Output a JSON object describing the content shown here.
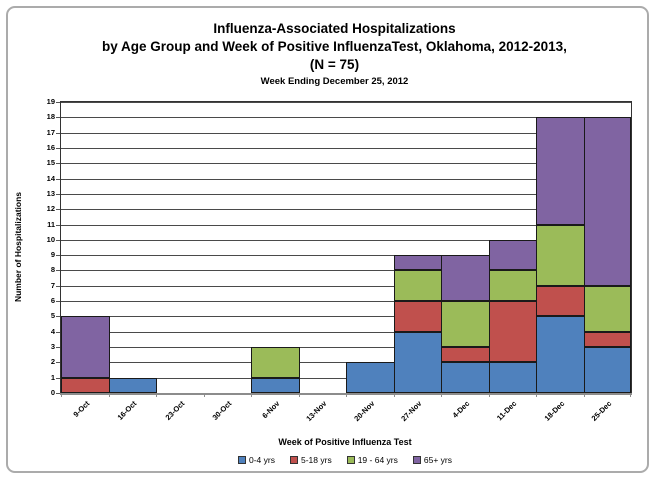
{
  "title": {
    "line1": "Influenza-Associated Hospitalizations",
    "line2": "by Age Group and Week of Positive InfluenzaTest, Oklahoma, 2012-2013,",
    "line3": "(N = 75)",
    "subtitle": "Week Ending December 25, 2012"
  },
  "chart_data": {
    "type": "bar",
    "stacked": true,
    "title": "Influenza-Associated Hospitalizations by Age Group and Week of Positive InfluenzaTest, Oklahoma, 2012-2013, (N = 75)",
    "subtitle": "Week Ending December 25, 2012",
    "xlabel": "Week of Positive Influenza Test",
    "ylabel": "Number of Hospitalizations",
    "ylim": [
      0,
      19
    ],
    "y_tick_step": 1,
    "grid": true,
    "legend_position": "bottom",
    "categories": [
      "9-Oct",
      "16-Oct",
      "23-Oct",
      "30-Oct",
      "6-Nov",
      "13-Nov",
      "20-Nov",
      "27-Nov",
      "4-Dec",
      "11-Dec",
      "18-Dec",
      "25-Dec"
    ],
    "series": [
      {
        "name": "0-4 yrs",
        "color": "#4F81BD",
        "values": [
          0,
          1,
          0,
          0,
          1,
          0,
          2,
          4,
          2,
          2,
          5,
          3
        ]
      },
      {
        "name": "5-18 yrs",
        "color": "#C0504D",
        "values": [
          1,
          0,
          0,
          0,
          0,
          0,
          0,
          2,
          1,
          4,
          2,
          1
        ]
      },
      {
        "name": "19 - 64 yrs",
        "color": "#9BBB59",
        "values": [
          0,
          0,
          0,
          0,
          2,
          0,
          0,
          2,
          3,
          2,
          4,
          3
        ]
      },
      {
        "name": "65+ yrs",
        "color": "#8064A2",
        "values": [
          4,
          0,
          0,
          0,
          0,
          0,
          0,
          1,
          3,
          2,
          7,
          11
        ]
      }
    ]
  }
}
